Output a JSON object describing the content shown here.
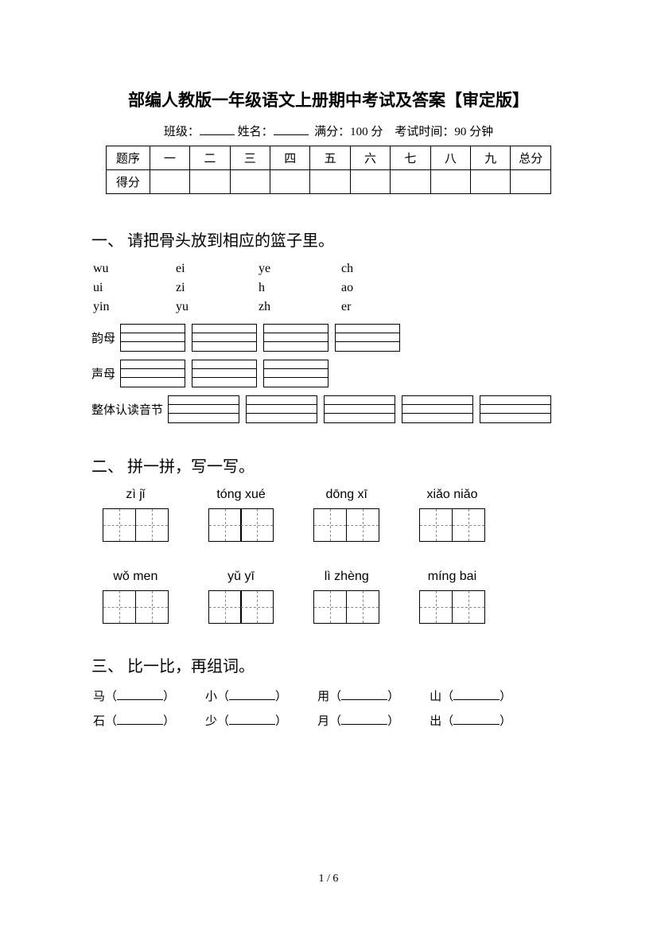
{
  "title": "部编人教版一年级语文上册期中考试及答案【审定版】",
  "info": {
    "class_label": "班级：",
    "name_label": "姓名：",
    "full_label": "满分：",
    "full_value": "100 分",
    "time_label": "考试时间：",
    "time_value": "90 分钟"
  },
  "scoreTable": {
    "row1_label": "题序",
    "row2_label": "得分",
    "cols": [
      "一",
      "二",
      "三",
      "四",
      "五",
      "六",
      "七",
      "八",
      "九",
      "总分"
    ]
  },
  "q1": {
    "head": "一、 请把骨头放到相应的篮子里。",
    "grid": [
      [
        "wu",
        "ei",
        "ye",
        "ch"
      ],
      [
        "ui",
        "zi",
        "h",
        "ao"
      ],
      [
        "yin",
        "yu",
        "zh",
        "er"
      ]
    ],
    "baskets": [
      {
        "label": "韵母",
        "boxes": 4,
        "boxClass": "basket-w1"
      },
      {
        "label": "声母",
        "boxes": 3,
        "boxClass": "basket-w1"
      },
      {
        "label": "整体认读音节",
        "boxes": 5,
        "boxClass": "basket-w2"
      }
    ]
  },
  "q2": {
    "head": "二、 拼一拼，写一写。",
    "rows": [
      [
        "zì jǐ",
        "tóng xué",
        "dōng xī",
        "xiǎo niǎo"
      ],
      [
        "wǒ men",
        "yǔ yī",
        "lì zhèng",
        "míng bai"
      ]
    ]
  },
  "q3": {
    "head": "三、 比一比，再组词。",
    "rows": [
      [
        "马",
        "小",
        "用",
        "山"
      ],
      [
        "石",
        "少",
        "月",
        "出"
      ]
    ]
  },
  "footer": "1 / 6"
}
